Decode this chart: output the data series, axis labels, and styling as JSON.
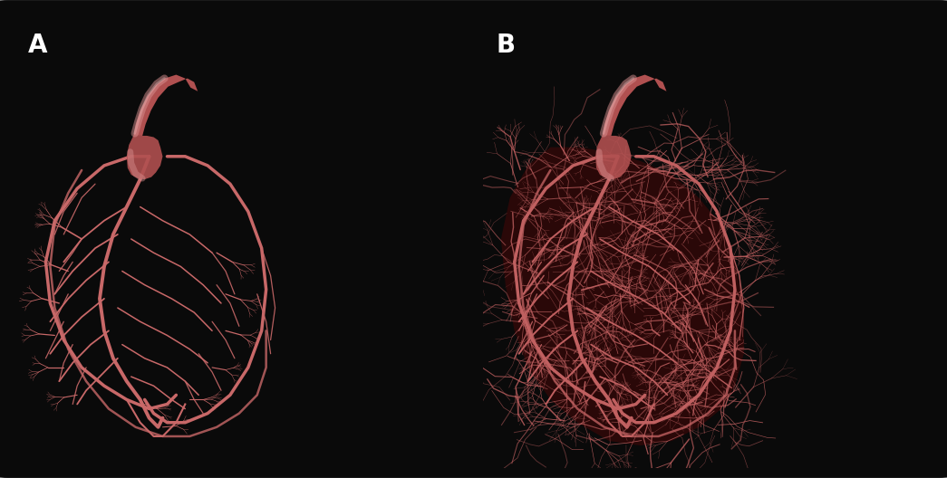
{
  "fig_width": 10.45,
  "fig_height": 5.28,
  "dpi": 100,
  "bg_color": "#0a0a0a",
  "border_color": "#777777",
  "panel_A_bg": "#000000",
  "panel_B_bg": "#120404",
  "vessel_color": "#c86868",
  "vessel_color_b": "#c06060",
  "aorta_fill": "#b05050",
  "aorta_highlight": "#d89090",
  "heart_fill_B": "#2a0808",
  "label_color": "#ffffff",
  "label_fontsize": 20,
  "label_fontweight": "bold",
  "label_A": "A",
  "label_B": "B"
}
